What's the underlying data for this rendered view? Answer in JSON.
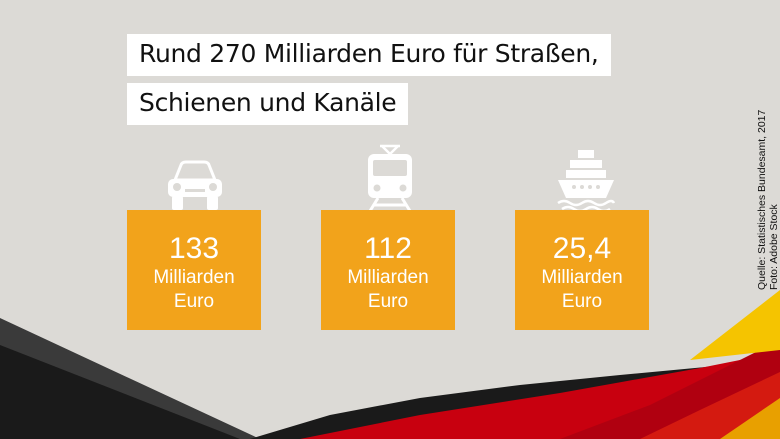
{
  "title": {
    "line1": "Rund 270 Milliarden Euro für Straßen,",
    "line2": "Schienen und Kanäle"
  },
  "cards": [
    {
      "icon": "car-icon",
      "value": "133",
      "unit_line1": "Milliarden",
      "unit_line2": "Euro"
    },
    {
      "icon": "train-icon",
      "value": "112",
      "unit_line1": "Milliarden",
      "unit_line2": "Euro"
    },
    {
      "icon": "ship-icon",
      "value": "25,4",
      "unit_line1": "Milliarden",
      "unit_line2": "Euro"
    }
  ],
  "credits": {
    "source": "Quelle: Statistisches Bundesamt, 2017",
    "photo": "Foto: Adobe Stock"
  },
  "colors": {
    "background": "#dcdad6",
    "accent": "#f2a31b",
    "black": "#1a1a1a",
    "red": "#c8000f",
    "gold": "#f5c400"
  }
}
